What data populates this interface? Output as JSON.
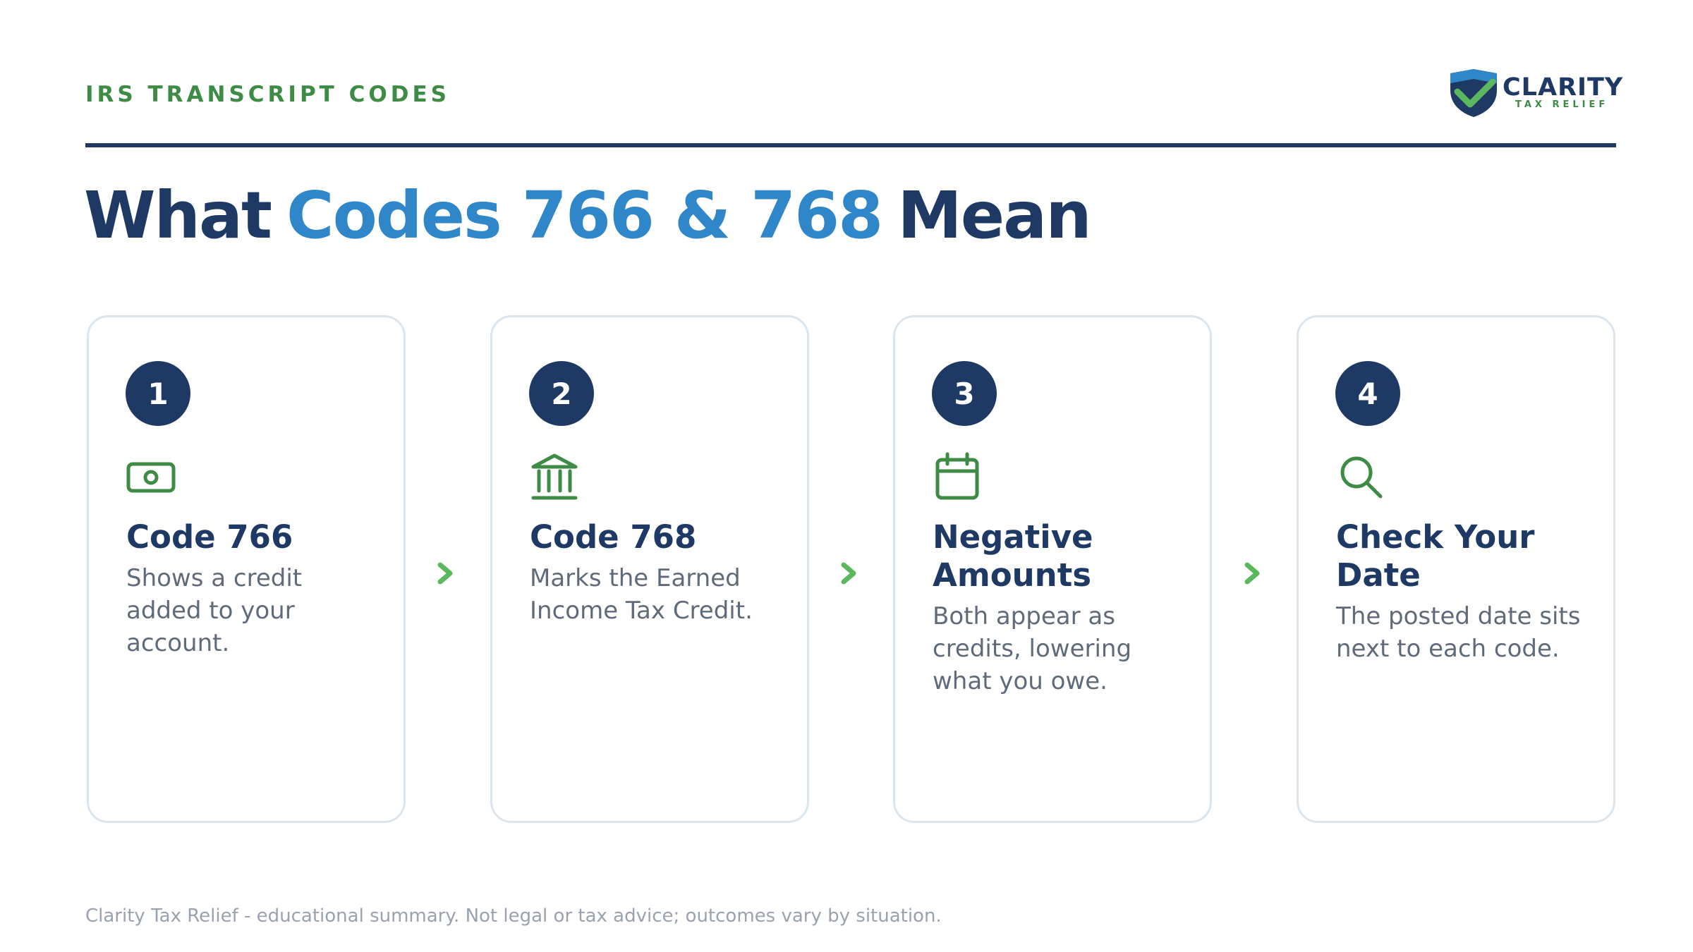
{
  "header": {
    "label": "IRS TRANSCRIPT CODES",
    "logo": {
      "name": "CLARITY",
      "tagline": "TAX RELIEF"
    }
  },
  "title": {
    "before": "What",
    "highlight": "Codes 766 & 768",
    "after": "Mean"
  },
  "cards": [
    {
      "number": "1",
      "heading": [
        "Code 766"
      ],
      "body": [
        "Shows a credit",
        "added to your",
        "account."
      ]
    },
    {
      "number": "2",
      "heading": [
        "Code 768"
      ],
      "body": [
        "Marks the Earned",
        "Income Tax Credit."
      ]
    },
    {
      "number": "3",
      "heading": [
        "Negative",
        "Amounts"
      ],
      "body": [
        "Both appear as",
        "credits, lowering",
        "what you owe."
      ]
    },
    {
      "number": "4",
      "heading": [
        "Check Your",
        "Date"
      ],
      "body": [
        "The posted date sits",
        "next to each code."
      ]
    }
  ],
  "footer": "Clarity Tax Relief - educational summary. Not legal or tax advice; outcomes vary by situation."
}
